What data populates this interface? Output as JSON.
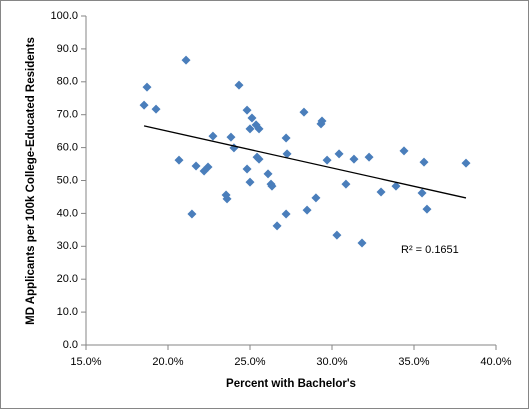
{
  "chart_data": {
    "type": "scatter",
    "xlabel": "Percent with Bachelor's",
    "ylabel": "MD Applicants  per 100k College-Educated  Residents",
    "annotation": "R² = 0.1651",
    "color": "#4a7ebb",
    "x": [
      18.72,
      18.54,
      19.27,
      21.1,
      20.67,
      21.71,
      21.46,
      22.2,
      22.44,
      22.74,
      23.54,
      23.6,
      23.84,
      24.02,
      24.33,
      24.82,
      25.12,
      25.0,
      25.37,
      25.55,
      25.43,
      25.55,
      24.82,
      25.0,
      26.1,
      26.28,
      26.34,
      26.65,
      27.2,
      27.26,
      27.2,
      28.29,
      28.48,
      29.02,
      29.33,
      29.39,
      29.7,
      30.43,
      30.3,
      30.85,
      31.34,
      31.83,
      32.26,
      32.99,
      33.9,
      34.39,
      35.49,
      35.61,
      35.79,
      38.17
    ],
    "values": [
      78.4,
      72.9,
      71.7,
      86.6,
      56.2,
      54.4,
      39.8,
      52.9,
      54.1,
      63.5,
      45.6,
      44.4,
      63.2,
      59.9,
      79.0,
      71.4,
      69.0,
      65.7,
      66.9,
      65.7,
      57.1,
      56.5,
      53.5,
      49.5,
      52.0,
      48.9,
      48.3,
      36.2,
      62.9,
      58.1,
      39.8,
      70.8,
      41.0,
      44.7,
      67.2,
      68.1,
      56.2,
      58.1,
      33.4,
      48.9,
      56.5,
      31.0,
      57.1,
      46.5,
      48.3,
      59.0,
      46.2,
      55.6,
      41.3,
      55.3
    ],
    "trendline": {
      "x": [
        18.54,
        38.17
      ],
      "y": [
        66.6,
        44.7
      ],
      "color": "#000000"
    },
    "xlim": [
      15,
      40
    ],
    "xticks": [
      {
        "value": 15,
        "label": "15.0%"
      },
      {
        "value": 20,
        "label": "20.0%"
      },
      {
        "value": 25,
        "label": "25.0%"
      },
      {
        "value": 30,
        "label": "30.0%"
      },
      {
        "value": 35,
        "label": "35.0%"
      },
      {
        "value": 40,
        "label": "40.0%"
      }
    ],
    "ylim": [
      0,
      100
    ],
    "yticks": [
      {
        "value": 0,
        "label": "0.0"
      },
      {
        "value": 10,
        "label": "10.0"
      },
      {
        "value": 20,
        "label": "20.0"
      },
      {
        "value": 30,
        "label": "30.0"
      },
      {
        "value": 40,
        "label": "40.0"
      },
      {
        "value": 50,
        "label": "50.0"
      },
      {
        "value": 60,
        "label": "60.0"
      },
      {
        "value": 70,
        "label": "70.0"
      },
      {
        "value": 80,
        "label": "80.0"
      },
      {
        "value": 90,
        "label": "90.0"
      },
      {
        "value": 100,
        "label": "100.0"
      }
    ],
    "grid": false
  }
}
